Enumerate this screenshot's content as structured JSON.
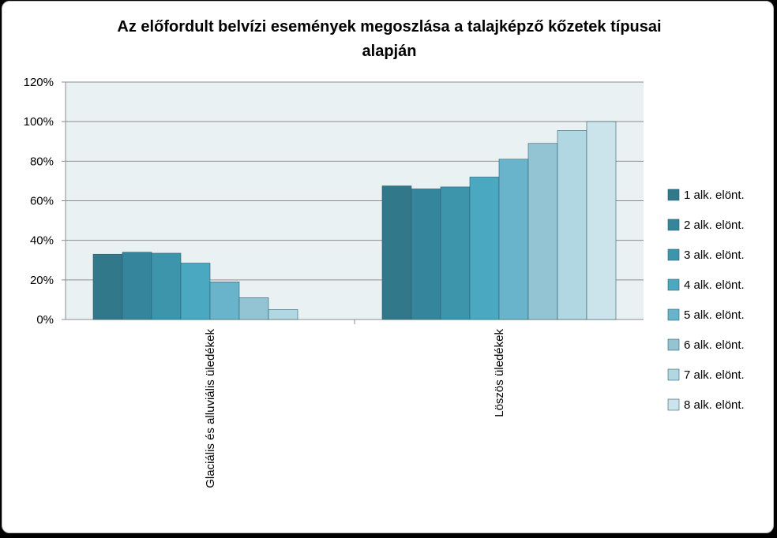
{
  "chart_data": {
    "type": "bar",
    "title": "Az előfordult belvízi események megoszlása a talajképző kőzetek típusai alapján",
    "title_lines": [
      "Az előfordult belvízi események megoszlása a talajképző kőzetek típusai",
      "alapján"
    ],
    "xlabel": "",
    "ylabel": "",
    "ylim": [
      0,
      120
    ],
    "yticks": [
      "0%",
      "20%",
      "40%",
      "60%",
      "80%",
      "100%",
      "120%"
    ],
    "categories": [
      "Glaciális és alluviális üledékek",
      "Löszös üledékek"
    ],
    "series": [
      {
        "name": "1 alk. elönt.",
        "values": [
          33,
          67.5
        ],
        "color": "#31788b"
      },
      {
        "name": "2 alk. elönt.",
        "values": [
          34,
          66
        ],
        "color": "#35869c"
      },
      {
        "name": "3 alk. elönt.",
        "values": [
          33.5,
          67
        ],
        "color": "#3d95ac"
      },
      {
        "name": "4 alk. elönt.",
        "values": [
          28.5,
          72
        ],
        "color": "#4aa8c0"
      },
      {
        "name": "5 alk. elönt.",
        "values": [
          19,
          81
        ],
        "color": "#69b4cb"
      },
      {
        "name": "6 alk. elönt.",
        "values": [
          11,
          89
        ],
        "color": "#92c4d4"
      },
      {
        "name": "7 alk. elönt.",
        "values": [
          5,
          95.5
        ],
        "color": "#b0d7e2"
      },
      {
        "name": "8 alk. elönt.",
        "values": [
          0,
          100
        ],
        "color": "#cbe3ea"
      }
    ],
    "plot_background": "#e9f1f3",
    "grid": true,
    "legend": "right"
  }
}
